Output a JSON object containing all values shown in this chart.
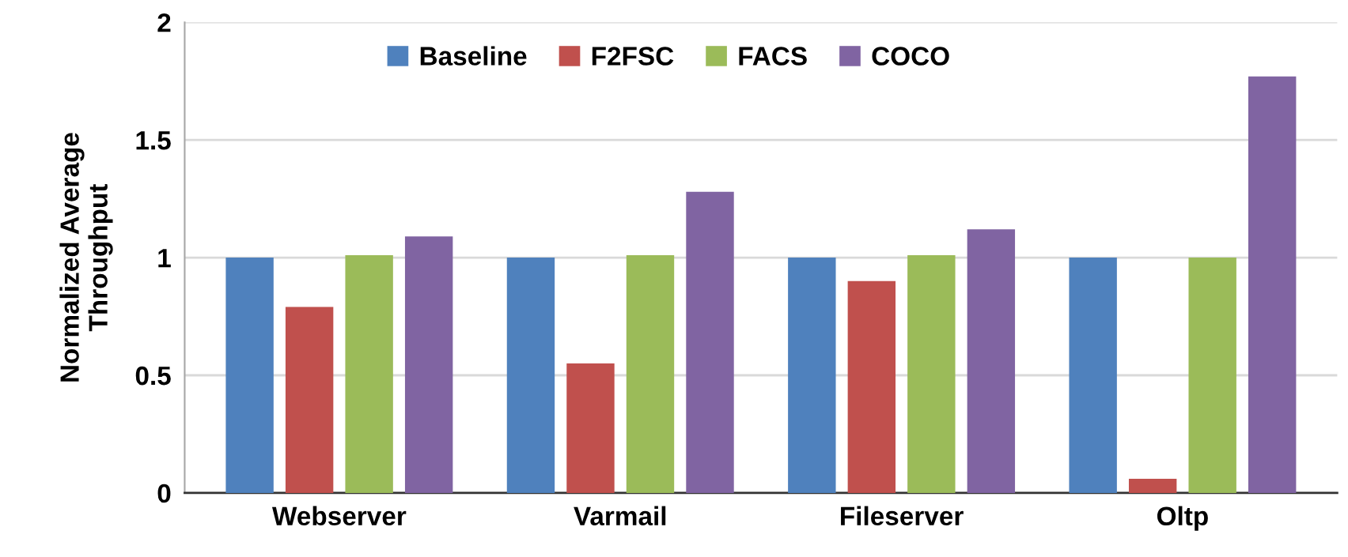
{
  "chart_data": {
    "type": "bar",
    "ylabel": "Normalized Average\nThroughput",
    "categories": [
      "Webserver",
      "Varmail",
      "Fileserver",
      "Oltp"
    ],
    "series": [
      {
        "name": "Baseline",
        "color": "#4f81bd",
        "values": [
          1,
          1,
          1,
          1
        ]
      },
      {
        "name": "F2FSC",
        "color": "#c0504d",
        "values": [
          0.79,
          0.55,
          0.9,
          0.06
        ]
      },
      {
        "name": "FACS",
        "color": "#9bbb59",
        "values": [
          1.01,
          1.01,
          1.01,
          1.0
        ]
      },
      {
        "name": "COCO",
        "color": "#8064a2",
        "values": [
          1.09,
          1.28,
          1.12,
          1.77
        ]
      }
    ],
    "ylim": [
      0,
      2
    ],
    "yticks": [
      0,
      0.5,
      1,
      1.5,
      2
    ],
    "grid": "y",
    "legend": "top"
  }
}
